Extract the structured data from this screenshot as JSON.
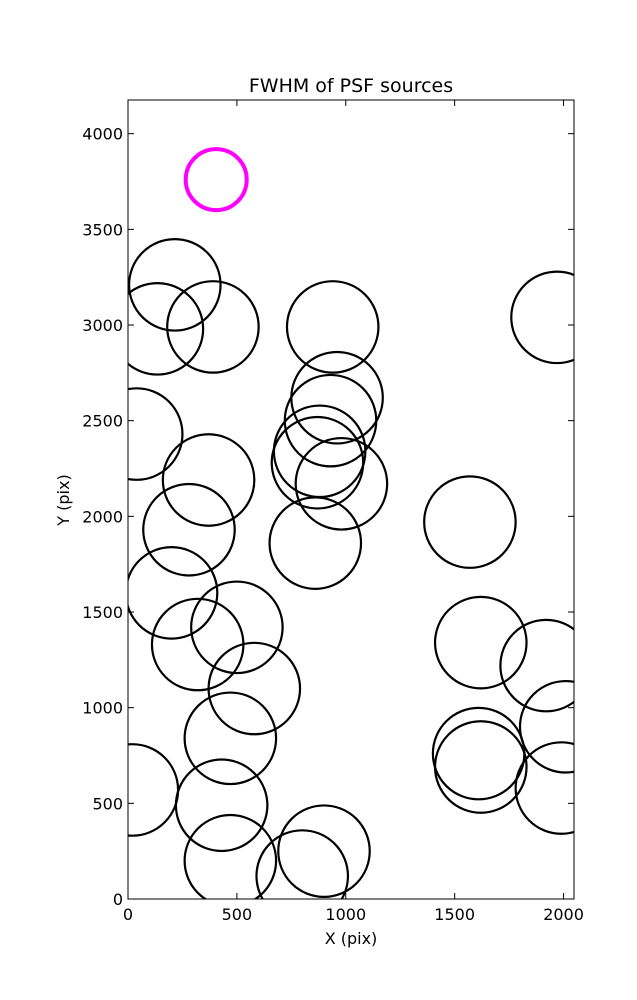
{
  "chart_data": {
    "type": "scatter",
    "title": "FWHM of PSF sources",
    "xlabel": "X (pix)",
    "ylabel": "Y (pix)",
    "xlim": [
      0,
      2048
    ],
    "ylim": [
      0,
      4176
    ],
    "xticks": [
      0,
      500,
      1000,
      1500,
      2000
    ],
    "yticks": [
      0,
      500,
      1000,
      1500,
      2000,
      2500,
      3000,
      3500,
      4000
    ],
    "grid": false,
    "series": [
      {
        "color": "#000000",
        "marker_radius": 210,
        "points": [
          {
            "x": 215,
            "y": 3210
          },
          {
            "x": 135,
            "y": 2980
          },
          {
            "x": 390,
            "y": 2990
          },
          {
            "x": 40,
            "y": 2430
          },
          {
            "x": 370,
            "y": 2190
          },
          {
            "x": 280,
            "y": 1930
          },
          {
            "x": 200,
            "y": 1600
          },
          {
            "x": 500,
            "y": 1420
          },
          {
            "x": 320,
            "y": 1330
          },
          {
            "x": 580,
            "y": 1100
          },
          {
            "x": 470,
            "y": 840
          },
          {
            "x": 20,
            "y": 570
          },
          {
            "x": 430,
            "y": 490
          },
          {
            "x": 470,
            "y": 200
          },
          {
            "x": 800,
            "y": 120
          },
          {
            "x": 900,
            "y": 250
          },
          {
            "x": 860,
            "y": 1860
          },
          {
            "x": 940,
            "y": 2990
          },
          {
            "x": 960,
            "y": 2620
          },
          {
            "x": 930,
            "y": 2500
          },
          {
            "x": 880,
            "y": 2340
          },
          {
            "x": 870,
            "y": 2280
          },
          {
            "x": 980,
            "y": 2170
          },
          {
            "x": 1570,
            "y": 1970
          },
          {
            "x": 1620,
            "y": 1340
          },
          {
            "x": 1920,
            "y": 1220
          },
          {
            "x": 1610,
            "y": 760
          },
          {
            "x": 1620,
            "y": 690
          },
          {
            "x": 2010,
            "y": 900
          },
          {
            "x": 1990,
            "y": 580
          },
          {
            "x": 1970,
            "y": 3040
          }
        ]
      },
      {
        "color": "#ff00ff",
        "marker_radius": 140,
        "points": [
          {
            "x": 405,
            "y": 3760
          }
        ]
      }
    ]
  }
}
